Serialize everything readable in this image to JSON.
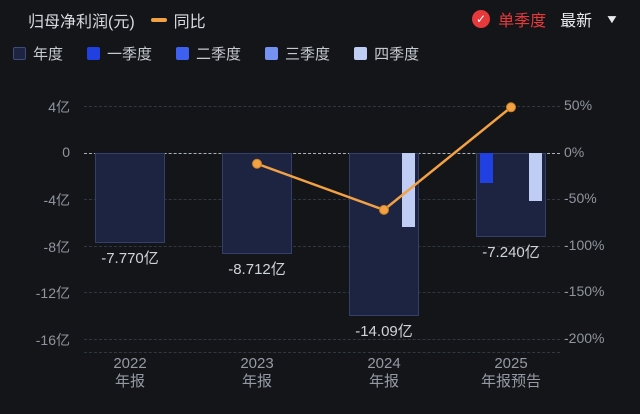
{
  "header": {
    "title": "归母净利润(元)",
    "line_legend": "同比",
    "single_quarter": "单季度",
    "latest": "最新",
    "dropdown_icon": "▼",
    "check_icon": "✓",
    "red": "#e5393c",
    "orange": "#f2a144"
  },
  "legend": [
    {
      "label": "年度",
      "color": "#1c2442",
      "border": "#3e4c78"
    },
    {
      "label": "一季度",
      "color": "#2140e2",
      "border": "#2140e2"
    },
    {
      "label": "二季度",
      "color": "#3d60f0",
      "border": "#3d60f0"
    },
    {
      "label": "三季度",
      "color": "#7591f2",
      "border": "#7591f2"
    },
    {
      "label": "四季度",
      "color": "#bfccf4",
      "border": "#bfccf4"
    }
  ],
  "chart_data": {
    "type": "bar+line",
    "title": "归母净利润(元)",
    "unit": "亿元",
    "grid": true,
    "legend_position": "top",
    "left_axis": {
      "label": "归母净利润",
      "ticks": [
        "4亿",
        "0",
        "-4亿",
        "-8亿",
        "-12亿",
        "-16亿"
      ],
      "values": [
        4,
        0,
        -4,
        -8,
        -12,
        -16
      ]
    },
    "right_axis": {
      "label": "同比",
      "ticks": [
        "50%",
        "0%",
        "-50%",
        "-100%",
        "-150%",
        "-200%"
      ],
      "values": [
        50,
        0,
        -50,
        -100,
        -150,
        -200
      ]
    },
    "groups": [
      {
        "cat_line1": "2022",
        "cat_line2": "年报",
        "yoy": null,
        "bars": [
          {
            "series": "年度",
            "value": -7.77,
            "label": "-7.770亿",
            "slot": "annual"
          }
        ]
      },
      {
        "cat_line1": "2023",
        "cat_line2": "年报",
        "yoy": -12.1,
        "bars": [
          {
            "series": "年度",
            "value": -8.712,
            "label": "-8.712亿",
            "slot": "annual"
          }
        ]
      },
      {
        "cat_line1": "2024",
        "cat_line2": "年报",
        "yoy": -61.7,
        "bars": [
          {
            "series": "年度",
            "value": -14.09,
            "label": "-14.09亿",
            "slot": "annual"
          },
          {
            "series": "四季度",
            "value": -6.4,
            "label": "",
            "slot": "q4"
          }
        ]
      },
      {
        "cat_line1": "2025",
        "cat_line2": "年报预告",
        "yoy": 48.6,
        "bars": [
          {
            "series": "年度",
            "value": -7.24,
            "label": "-7.240亿",
            "slot": "annual"
          },
          {
            "series": "一季度",
            "value": -2.6,
            "label": "",
            "slot": "q1"
          },
          {
            "series": "四季度",
            "value": -4.2,
            "label": "",
            "slot": "q4"
          }
        ]
      }
    ],
    "line_series": {
      "name": "同比",
      "color": "#f2a144",
      "values_pct": [
        null,
        -12.1,
        -61.7,
        48.6
      ]
    }
  }
}
